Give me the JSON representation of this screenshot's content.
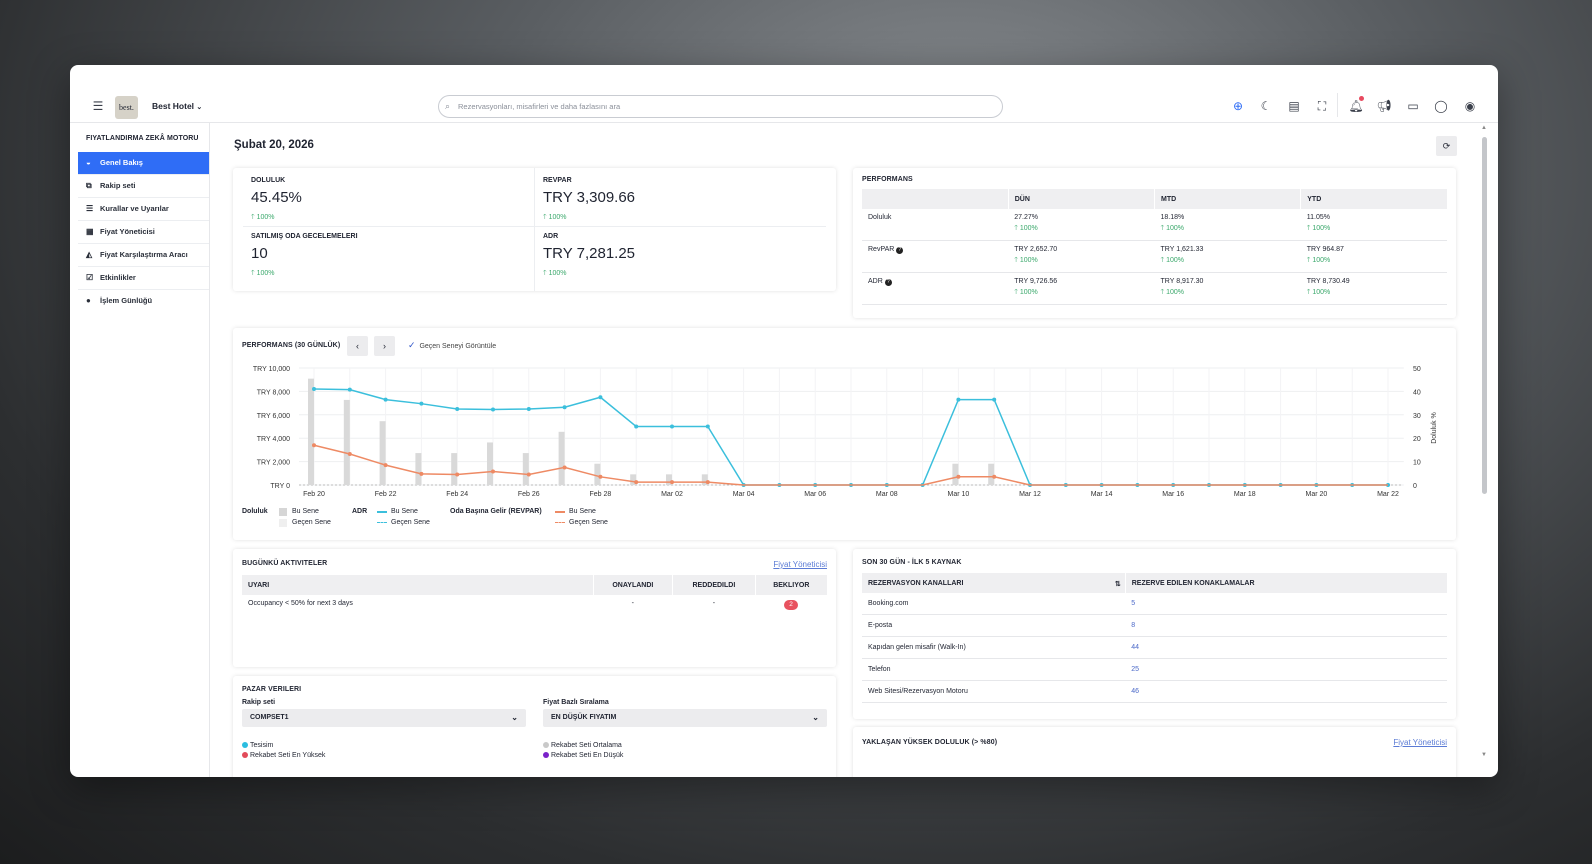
{
  "header": {
    "hotel_name": "Best Hotel",
    "logo_text": "best.",
    "search_placeholder": "Rezervasyonları, misafirleri ve daha fazlasını ara"
  },
  "sidebar": {
    "title": "FIYATLANDIRMA ZEKÂ MOTORU",
    "items": [
      {
        "label": "Genel Bakış",
        "icon": "dashboard-icon",
        "active": true
      },
      {
        "label": "Rakip seti",
        "icon": "copy-icon"
      },
      {
        "label": "Kurallar ve Uyarılar",
        "icon": "list-icon"
      },
      {
        "label": "Fiyat Yöneticisi",
        "icon": "calendar-icon"
      },
      {
        "label": "Fiyat Karşılaştırma Aracı",
        "icon": "area-chart-icon"
      },
      {
        "label": "Etkinlikler",
        "icon": "calendar-check-icon"
      },
      {
        "label": "İşlem Günlüğü",
        "icon": "info-icon"
      }
    ]
  },
  "page": {
    "date": "Şubat 20, 2026"
  },
  "kpis": [
    {
      "label": "DOLULUK",
      "value": "45.45%",
      "delta": "100%"
    },
    {
      "label": "REVPAR",
      "value": "TRY 3,309.66",
      "delta": "100%"
    },
    {
      "label": "SATILMIŞ ODA GECELEMELERI",
      "value": "10",
      "delta": "100%"
    },
    {
      "label": "ADR",
      "value": "TRY 7,281.25",
      "delta": "100%"
    }
  ],
  "performance": {
    "title": "PERFORMANS",
    "columns": [
      "",
      "DÜN",
      "MTD",
      "YTD"
    ],
    "rows": [
      {
        "label": "Doluluk",
        "values": [
          "27.27%",
          "18.18%",
          "11.05%"
        ],
        "deltas": [
          "100%",
          "100%",
          "100%"
        ]
      },
      {
        "label": "RevPAR",
        "values": [
          "TRY 2,652.70",
          "TRY 1,621.33",
          "TRY 964.87"
        ],
        "deltas": [
          "100%",
          "100%",
          "100%"
        ]
      },
      {
        "label": "ADR",
        "values": [
          "TRY 9,726.56",
          "TRY 8,917.30",
          "TRY 8,730.49"
        ],
        "deltas": [
          "100%",
          "100%",
          "100%"
        ]
      }
    ]
  },
  "chart_section": {
    "title": "PERFORMANS (30 GÜNLÜK)",
    "toggle_label": "Geçen Seneyi Görüntüle"
  },
  "chart_data": {
    "type": "bar+line",
    "x": [
      "Feb 20",
      "Feb 21",
      "Feb 22",
      "Feb 23",
      "Feb 24",
      "Feb 25",
      "Feb 26",
      "Feb 27",
      "Feb 28",
      "Mar 01",
      "Mar 02",
      "Mar 03",
      "Mar 04",
      "Mar 05",
      "Mar 06",
      "Mar 07",
      "Mar 08",
      "Mar 09",
      "Mar 10",
      "Mar 11",
      "Mar 12",
      "Mar 13",
      "Mar 14",
      "Mar 15",
      "Mar 16",
      "Mar 17",
      "Mar 18",
      "Mar 19",
      "Mar 20",
      "Mar 21",
      "Mar 22"
    ],
    "x_tick_labels": [
      "Feb 20",
      "Feb 22",
      "Feb 24",
      "Feb 26",
      "Feb 28",
      "Mar 02",
      "Mar 04",
      "Mar 06",
      "Mar 08",
      "Mar 10",
      "Mar 12",
      "Mar 14",
      "Mar 16",
      "Mar 18",
      "Mar 20",
      "Mar 22"
    ],
    "y_left_ticks": [
      "TRY 0",
      "TRY 2,000",
      "TRY 4,000",
      "TRY 6,000",
      "TRY 8,000",
      "TRY 10,000"
    ],
    "ylim_left": [
      0,
      10000
    ],
    "y_right_ticks": [
      "0",
      "10",
      "20",
      "30",
      "40",
      "50"
    ],
    "ylim_right": [
      0,
      50
    ],
    "ylabel_right": "Doluluk %",
    "series": [
      {
        "name": "Doluluk Bu Sene",
        "kind": "bar",
        "axis": "right",
        "color": "#d9d9d9",
        "values": [
          45.45,
          36.36,
          27.27,
          13.64,
          13.64,
          18.18,
          13.64,
          22.73,
          9.09,
          4.55,
          4.55,
          4.55,
          0,
          0,
          0,
          0,
          0,
          0,
          9.09,
          9.09,
          0,
          0,
          0,
          0,
          0,
          0,
          0,
          0,
          0,
          0,
          0
        ]
      },
      {
        "name": "ADR Bu Sene",
        "kind": "line",
        "axis": "left",
        "color": "#3bbfdc",
        "values": [
          8200,
          8150,
          7300,
          6950,
          6500,
          6450,
          6500,
          6650,
          7500,
          5000,
          5000,
          5000,
          0,
          0,
          0,
          0,
          0,
          0,
          7300,
          7300,
          0,
          0,
          0,
          0,
          0,
          0,
          0,
          0,
          0,
          0,
          0
        ]
      },
      {
        "name": "REVPAR Bu Sene",
        "kind": "line",
        "axis": "left",
        "color": "#ee8a64",
        "values": [
          3400,
          2650,
          1700,
          950,
          900,
          1150,
          900,
          1500,
          700,
          250,
          250,
          250,
          0,
          0,
          0,
          0,
          0,
          0,
          700,
          700,
          0,
          0,
          0,
          0,
          0,
          0,
          0,
          0,
          0,
          0,
          0
        ]
      }
    ],
    "legend": {
      "groups": [
        {
          "title": "Doluluk",
          "this_year": "Bu Sene",
          "last_year": "Geçen Sene"
        },
        {
          "title": "ADR",
          "this_year": "Bu Sene",
          "last_year": "Geçen Sene"
        },
        {
          "title": "Oda Başına Gelir (REVPAR)",
          "this_year": "Bu Sene",
          "last_year": "Geçen Sene"
        }
      ],
      "placement": "bottom-left"
    }
  },
  "activities": {
    "title": "BUGÜNKÜ AKTIVITELER",
    "link": "Fiyat Yöneticisi",
    "columns": [
      "UYARI",
      "ONAYLANDI",
      "REDDEDILDI",
      "BEKLIYOR"
    ],
    "rows": [
      {
        "alert": "Occupancy < 50% for next 3 days",
        "approved": "-",
        "rejected": "-",
        "pending": "2"
      }
    ]
  },
  "sources": {
    "title": "SON 30 GÜN - İLK 5 KAYNAK",
    "columns": [
      "REZERVASYON KANALLARI",
      "REZERVE EDILEN KONAKLAMALAR"
    ],
    "rows": [
      {
        "channel": "Booking.com",
        "count": "5"
      },
      {
        "channel": "E-posta",
        "count": "8"
      },
      {
        "channel": "Kapıdan gelen misafir (Walk-In)",
        "count": "44"
      },
      {
        "channel": "Telefon",
        "count": "25"
      },
      {
        "channel": "Web Sitesi/Rezervasyon Motoru",
        "count": "46"
      }
    ]
  },
  "market": {
    "title": "PAZAR VERILERI",
    "compset_label": "Rakip seti",
    "compset_value": "COMPSET1",
    "ranking_label": "Fiyat Bazlı Sıralama",
    "ranking_value": "EN DÜŞÜK FIYATIM",
    "legend": [
      {
        "label": "Tesisim",
        "color": "#2bbde0"
      },
      {
        "label": "Rekabet Seti En Yüksek",
        "color": "#e24b5a"
      },
      {
        "label": "Rekabet Seti Ortalama",
        "color": "#c9c9c9"
      },
      {
        "label": "Rekabet Seti En Düşük",
        "color": "#7a22c9"
      }
    ]
  },
  "upcoming": {
    "title": "YAKLAŞAN YÜKSEK DOLULUK (> %80)",
    "link": "Fiyat Yöneticisi"
  }
}
